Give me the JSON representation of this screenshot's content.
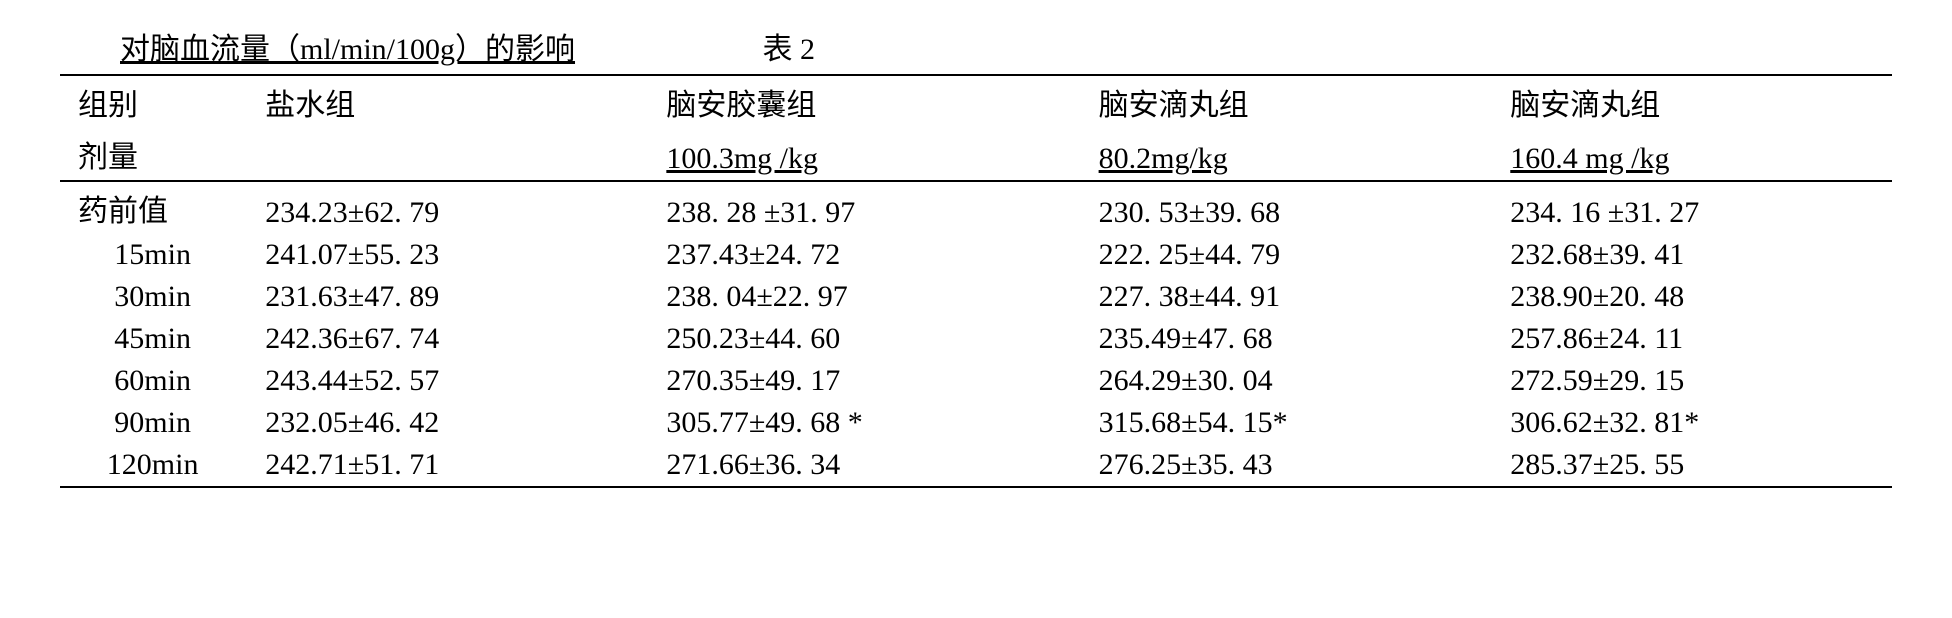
{
  "title": {
    "left": "对脑血流量（ml/min/100g）的影响",
    "right": "表 2"
  },
  "header": {
    "row_label1": "组别",
    "row_label2": "剂量",
    "groups": [
      {
        "name": "盐水组",
        "dose": ""
      },
      {
        "name": "脑安胶囊组",
        "dose": "100.3mg /kg"
      },
      {
        "name": "脑安滴丸组",
        "dose": "80.2mg/kg"
      },
      {
        "name": "脑安滴丸组",
        "dose": "160.4 mg /kg"
      }
    ]
  },
  "rows": [
    {
      "label": "药前值",
      "v": [
        "234.23±62. 79",
        "238. 28  ±31. 97",
        "230. 53±39. 68",
        "234. 16 ±31. 27"
      ]
    },
    {
      "label": "15min",
      "v": [
        "241.07±55. 23",
        "237.43±24. 72",
        "222. 25±44. 79",
        "232.68±39. 41"
      ]
    },
    {
      "label": "30min",
      "v": [
        "231.63±47. 89",
        "238. 04±22. 97",
        "227. 38±44. 91",
        "238.90±20. 48"
      ]
    },
    {
      "label": "45min",
      "v": [
        "242.36±67. 74",
        "250.23±44. 60",
        "235.49±47. 68",
        "257.86±24. 11"
      ]
    },
    {
      "label": "60min",
      "v": [
        "243.44±52. 57",
        "270.35±49. 17",
        "264.29±30. 04",
        "272.59±29. 15"
      ]
    },
    {
      "label": "90min",
      "v": [
        "232.05±46. 42",
        "305.77±49. 68  *",
        "315.68±54. 15*",
        "306.62±32. 81*"
      ]
    },
    {
      "label": "120min",
      "v": [
        "242.71±51. 71",
        "271.66±36. 34",
        "276.25±35. 43",
        "285.37±25. 55"
      ]
    }
  ]
}
